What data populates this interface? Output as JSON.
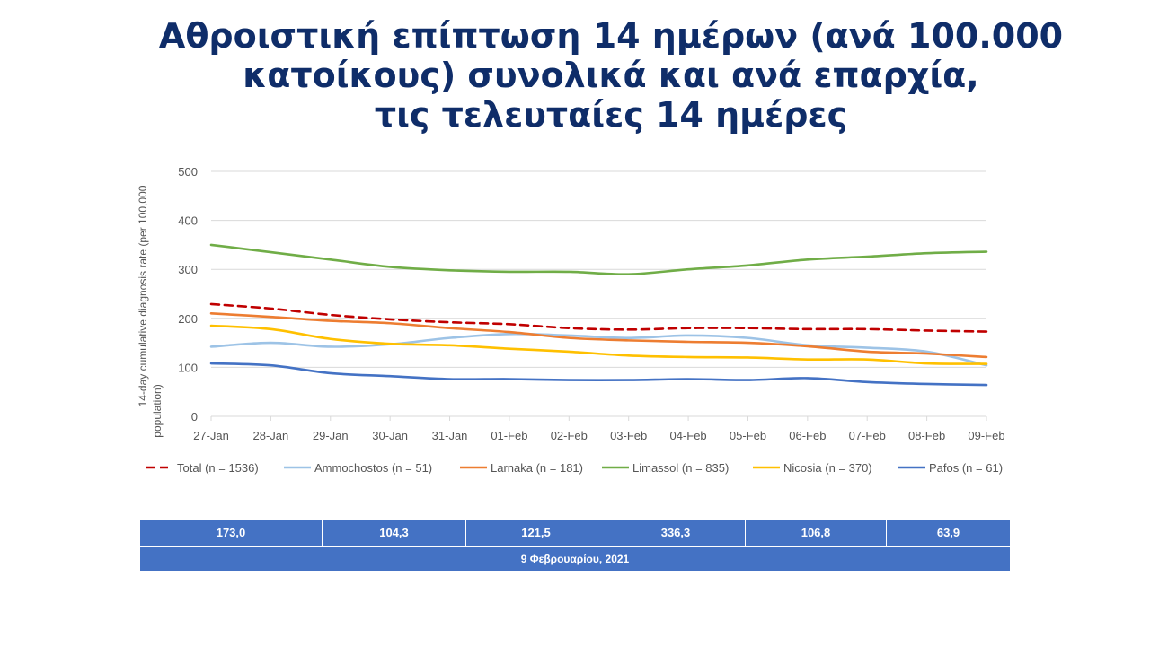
{
  "title": {
    "line1": "Αθροιστική επίπτωση 14 ημέρων (ανά 100.000",
    "line2": "κατοίκους) συνολικά και ανά επαρχία,",
    "line3": "τις τελευταίες 14 ημέρες"
  },
  "chart_data": {
    "type": "line",
    "ylabel": "14-day cumulative diagnosis rate (per 100,000 population)",
    "xlabel": "",
    "ylim": [
      0,
      500
    ],
    "yticks": [
      "0",
      "100",
      "200",
      "300",
      "400",
      "500"
    ],
    "categories": [
      "27-Jan",
      "28-Jan",
      "29-Jan",
      "30-Jan",
      "31-Jan",
      "01-Feb",
      "02-Feb",
      "03-Feb",
      "04-Feb",
      "05-Feb",
      "06-Feb",
      "07-Feb",
      "08-Feb",
      "09-Feb"
    ],
    "grid": true,
    "legend_position": "bottom",
    "series": [
      {
        "name": "Total (n = 1536)",
        "color": "#c00000",
        "dashed": true,
        "values": [
          229,
          220,
          207,
          198,
          192,
          188,
          180,
          177,
          180,
          180,
          178,
          178,
          175,
          173
        ]
      },
      {
        "name": "Ammochostos (n = 51)",
        "color": "#9dc3e6",
        "dashed": false,
        "values": [
          142,
          150,
          142,
          147,
          160,
          168,
          165,
          160,
          165,
          160,
          145,
          140,
          132,
          104
        ]
      },
      {
        "name": "Larnaka (n = 181)",
        "color": "#ed7d31",
        "dashed": false,
        "values": [
          210,
          203,
          195,
          190,
          180,
          172,
          160,
          155,
          152,
          150,
          143,
          132,
          128,
          121
        ]
      },
      {
        "name": "Limassol (n = 835)",
        "color": "#70ad47",
        "dashed": false,
        "values": [
          350,
          335,
          320,
          305,
          298,
          295,
          295,
          290,
          300,
          308,
          320,
          326,
          333,
          336
        ]
      },
      {
        "name": "Nicosia (n = 370)",
        "color": "#ffc000",
        "dashed": false,
        "values": [
          185,
          178,
          158,
          148,
          145,
          138,
          132,
          124,
          121,
          120,
          116,
          116,
          108,
          107
        ]
      },
      {
        "name": "Pafos (n = 61)",
        "color": "#4472c4",
        "dashed": false,
        "values": [
          108,
          104,
          88,
          82,
          76,
          76,
          74,
          74,
          76,
          74,
          78,
          70,
          66,
          64
        ]
      }
    ]
  },
  "table": {
    "values": [
      "173,0",
      "104,3",
      "121,5",
      "336,3",
      "106,8",
      "63,9"
    ],
    "date": "9 Φεβρουαρίου, 2021"
  },
  "colors": {
    "title": "#0f2d69",
    "table_bg": "#4472c4",
    "grid": "#d9d9d9"
  }
}
